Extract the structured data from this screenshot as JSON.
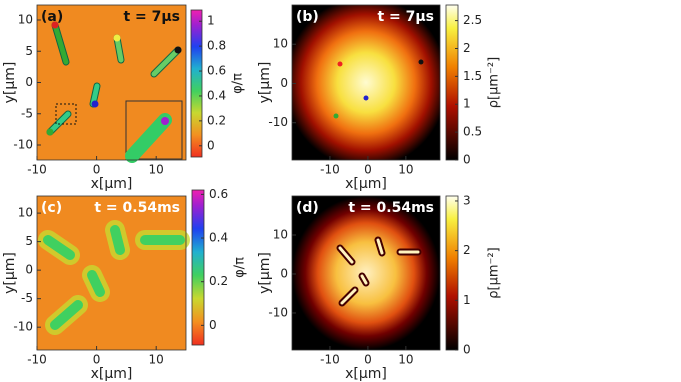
{
  "chart_data": [
    {
      "type": "heatmap",
      "label": "(a)",
      "annotation": "t = 7μs",
      "xlabel": "x[μm]",
      "ylabel": "y[μm]",
      "xlim": [
        -10,
        15
      ],
      "ylim": [
        -12.4,
        12.4
      ],
      "xticks": [
        -10,
        0,
        10
      ],
      "yticks": [
        -10,
        -5,
        0,
        5,
        10
      ],
      "colorbar": {
        "label": "φ/π",
        "lim": [
          -0.09,
          1.09
        ],
        "ticks": [
          0,
          0.2,
          0.4,
          0.6,
          0.8,
          1
        ]
      }
    },
    {
      "type": "heatmap",
      "label": "(b)",
      "annotation": "t = 7μs",
      "xlabel": "x[μm]",
      "ylabel": "y[μm]",
      "xlim": [
        -20,
        19
      ],
      "ylim": [
        -19.5,
        20
      ],
      "xticks": [
        -10,
        0,
        10
      ],
      "yticks": [
        -10,
        0,
        10
      ],
      "colorbar": {
        "label": "ρ[μm⁻²]",
        "lim": [
          0,
          2.78
        ],
        "ticks": [
          0,
          0.5,
          1,
          1.5,
          2,
          2.5
        ]
      }
    },
    {
      "type": "heatmap",
      "label": "(c)",
      "annotation": "t = 0.54ms",
      "xlabel": "x[μm]",
      "ylabel": "y[μm]",
      "xlim": [
        -10,
        15
      ],
      "ylim": [
        -14,
        13
      ],
      "xticks": [
        -10,
        0,
        10
      ],
      "yticks": [
        -10,
        -5,
        0,
        5,
        10
      ],
      "colorbar": {
        "label": "φ/π",
        "lim": [
          -0.09,
          0.62
        ],
        "ticks": [
          0,
          0.2,
          0.4,
          0.6
        ]
      }
    },
    {
      "type": "heatmap",
      "label": "(d)",
      "annotation": "t = 0.54ms",
      "xlabel": "x[μm]",
      "ylabel": "y[μm]",
      "xlim": [
        -20,
        19
      ],
      "ylim": [
        -19.5,
        20
      ],
      "xticks": [
        -10,
        0,
        10
      ],
      "yticks": [
        -10,
        0,
        10
      ],
      "colorbar": {
        "label": "ρ[μm⁻²]",
        "lim": [
          0,
          3.1
        ],
        "ticks": [
          0,
          1,
          2,
          3
        ]
      }
    }
  ]
}
